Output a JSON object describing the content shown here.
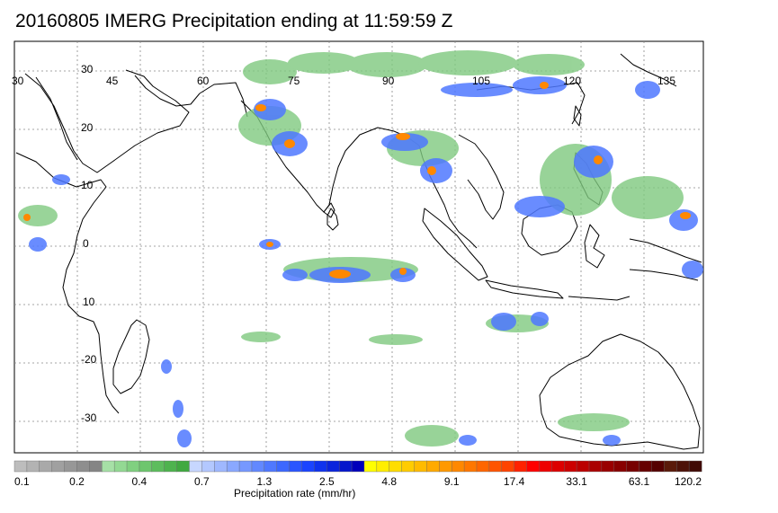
{
  "title": "20160805 IMERG Precipitation ending at 11:59:59 Z",
  "longitude_labels": [
    "30",
    "45",
    "60",
    "75",
    "90",
    "105",
    "120",
    "135"
  ],
  "latitude_labels": [
    "30",
    "20",
    "10",
    "0",
    "10",
    "-20",
    "-30"
  ],
  "colorbar": {
    "caption": "Precipitation rate (mm/hr)",
    "tick_labels": [
      "0.1",
      "0.2",
      "0.4",
      "0.7",
      "1.3",
      "2.5",
      "4.8",
      "9.1",
      "17.4",
      "33.1",
      "63.1",
      "120.2"
    ],
    "colors": [
      "#bdbdbd",
      "#b3b3b3",
      "#a9a9a9",
      "#a0a0a0",
      "#979797",
      "#8e8e8e",
      "#858585",
      "#a6e0a6",
      "#93d993",
      "#80d080",
      "#6dc66d",
      "#5dbd5d",
      "#4eb34e",
      "#40a940",
      "#c7d7ff",
      "#b3c8ff",
      "#9fb8ff",
      "#8aa8ff",
      "#7698ff",
      "#6288ff",
      "#4f78ff",
      "#3c68ff",
      "#2a55ff",
      "#1a44ff",
      "#0f33ee",
      "#0a24dd",
      "#0516cc",
      "#0000bb",
      "#ffff00",
      "#ffee00",
      "#ffdd00",
      "#ffcc00",
      "#ffbb00",
      "#ffaa00",
      "#ff9900",
      "#ff8800",
      "#ff7700",
      "#ff6600",
      "#ff5500",
      "#ff4400",
      "#ff2200",
      "#ff0000",
      "#ee0000",
      "#dd0000",
      "#cc0000",
      "#bb0000",
      "#aa0000",
      "#990000",
      "#880000",
      "#770000",
      "#660000",
      "#550000",
      "#5a1a0a",
      "#4d1208",
      "#400a05"
    ]
  }
}
